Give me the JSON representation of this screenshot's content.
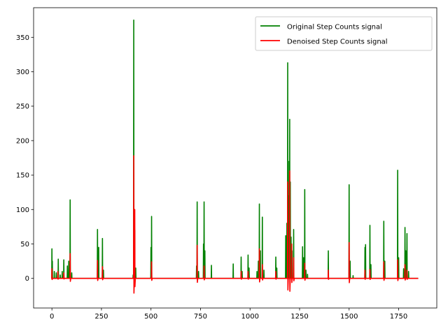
{
  "chart_data": {
    "type": "line",
    "title": "",
    "xlabel": "",
    "ylabel": "",
    "xlim": [
      -92.5,
      1942.5
    ],
    "ylim": [
      -43,
      393
    ],
    "xticks": [
      0,
      250,
      500,
      750,
      1000,
      1250,
      1500,
      1750
    ],
    "yticks": [
      0,
      50,
      100,
      150,
      200,
      250,
      300,
      350
    ],
    "grid": false,
    "legend_position": "top-right",
    "n_points": 1850,
    "series": [
      {
        "name": "Original Step Counts signal",
        "color": "#008000",
        "spikes": [
          [
            0,
            43
          ],
          [
            2,
            25
          ],
          [
            12,
            10
          ],
          [
            22,
            8
          ],
          [
            32,
            28
          ],
          [
            42,
            5
          ],
          [
            52,
            10
          ],
          [
            60,
            27
          ],
          [
            78,
            18
          ],
          [
            85,
            25
          ],
          [
            92,
            114
          ],
          [
            100,
            8
          ],
          [
            230,
            71
          ],
          [
            236,
            45
          ],
          [
            255,
            58
          ],
          [
            260,
            12
          ],
          [
            410,
            5
          ],
          [
            413,
            375
          ],
          [
            418,
            70
          ],
          [
            423,
            15
          ],
          [
            500,
            45
          ],
          [
            503,
            90
          ],
          [
            730,
            18
          ],
          [
            733,
            111
          ],
          [
            740,
            10
          ],
          [
            765,
            50
          ],
          [
            768,
            111
          ],
          [
            772,
            40
          ],
          [
            805,
            19
          ],
          [
            915,
            21
          ],
          [
            955,
            31
          ],
          [
            960,
            10
          ],
          [
            990,
            34
          ],
          [
            995,
            15
          ],
          [
            1035,
            10
          ],
          [
            1042,
            25
          ],
          [
            1047,
            108
          ],
          [
            1052,
            40
          ],
          [
            1062,
            89
          ],
          [
            1070,
            12
          ],
          [
            1130,
            31
          ],
          [
            1135,
            15
          ],
          [
            1180,
            62
          ],
          [
            1186,
            80
          ],
          [
            1190,
            313
          ],
          [
            1193,
            120
          ],
          [
            1197,
            170
          ],
          [
            1200,
            231
          ],
          [
            1203,
            140
          ],
          [
            1207,
            60
          ],
          [
            1212,
            40
          ],
          [
            1220,
            71
          ],
          [
            1265,
            46
          ],
          [
            1270,
            30
          ],
          [
            1276,
            129
          ],
          [
            1282,
            12
          ],
          [
            1290,
            6
          ],
          [
            1395,
            40
          ],
          [
            1500,
            136
          ],
          [
            1505,
            25
          ],
          [
            1520,
            4
          ],
          [
            1580,
            45
          ],
          [
            1583,
            49
          ],
          [
            1605,
            77
          ],
          [
            1610,
            20
          ],
          [
            1675,
            83
          ],
          [
            1680,
            25
          ],
          [
            1745,
            157
          ],
          [
            1750,
            30
          ],
          [
            1775,
            14
          ],
          [
            1782,
            74
          ],
          [
            1786,
            40
          ],
          [
            1792,
            65
          ],
          [
            1800,
            10
          ]
        ]
      },
      {
        "name": "Denoised Step Counts signal",
        "color": "#ff0000",
        "spikes": [
          [
            0,
            14
          ],
          [
            30,
            10
          ],
          [
            60,
            8
          ],
          [
            92,
            36
          ],
          [
            230,
            26
          ],
          [
            255,
            17
          ],
          [
            413,
            178
          ],
          [
            418,
            100
          ],
          [
            503,
            24
          ],
          [
            733,
            48
          ],
          [
            768,
            18
          ],
          [
            955,
            10
          ],
          [
            990,
            10
          ],
          [
            1047,
            43
          ],
          [
            1062,
            20
          ],
          [
            1130,
            10
          ],
          [
            1190,
            140
          ],
          [
            1200,
            156
          ],
          [
            1210,
            50
          ],
          [
            1220,
            30
          ],
          [
            1276,
            22
          ],
          [
            1395,
            12
          ],
          [
            1500,
            52
          ],
          [
            1580,
            12
          ],
          [
            1605,
            13
          ],
          [
            1675,
            24
          ],
          [
            1745,
            27
          ],
          [
            1782,
            20
          ],
          [
            1792,
            12
          ]
        ]
      }
    ]
  }
}
